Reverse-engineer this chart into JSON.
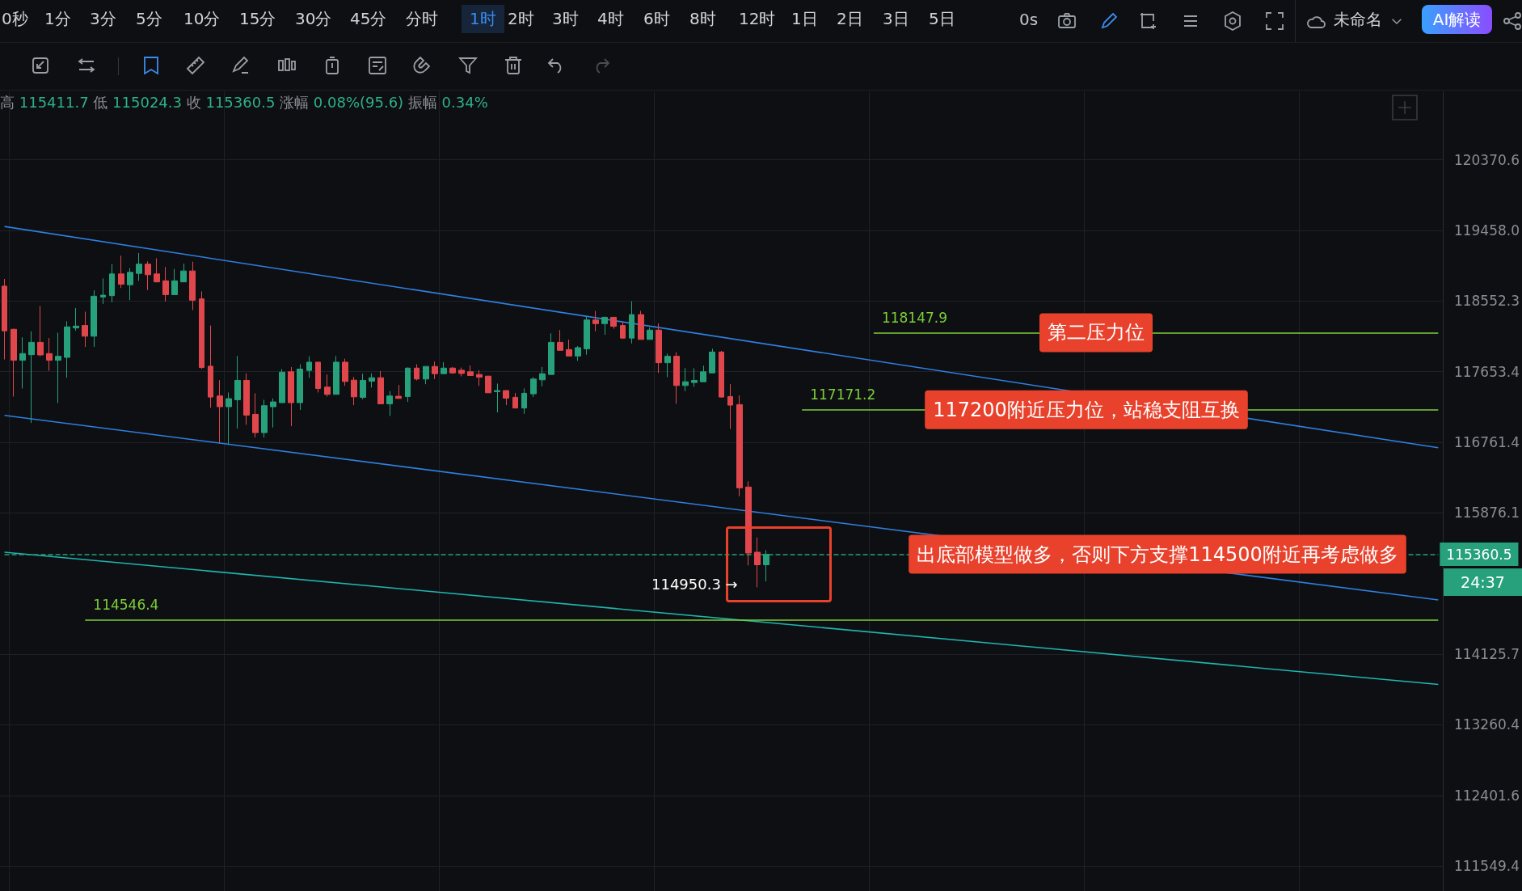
{
  "chart_data": {
    "type": "candlestick",
    "categories": [
      null,
      null,
      null,
      null,
      null,
      null,
      null,
      null,
      null,
      null,
      null,
      null,
      null,
      null,
      null,
      null,
      null,
      null,
      null,
      null,
      null,
      null,
      null,
      null,
      null,
      null,
      null,
      null,
      null,
      null,
      null,
      null,
      null,
      null,
      null,
      null,
      null,
      null,
      null,
      null,
      null,
      null,
      null,
      null,
      null,
      null,
      null,
      null,
      null,
      null,
      null,
      null,
      null,
      null,
      null,
      null,
      null,
      null,
      null,
      null,
      null,
      null,
      null,
      null,
      null,
      null,
      null,
      null,
      null,
      null,
      null,
      null,
      null,
      null,
      null,
      null,
      null,
      null,
      null,
      null,
      null,
      null,
      null,
      null,
      null,
      null,
      null,
      null,
      null,
      null,
      null,
      null,
      null,
      null,
      null,
      null,
      null,
      null,
      null,
      null,
      null,
      null,
      null,
      null,
      null,
      null,
      null,
      null,
      null,
      null,
      null,
      null,
      null,
      null,
      null,
      null,
      null,
      null,
      null,
      null,
      null,
      null,
      null,
      null,
      null,
      null,
      null,
      null,
      null,
      null,
      null,
      null,
      null,
      null,
      null,
      null,
      null,
      null,
      null,
      null,
      null,
      null,
      null,
      null,
      null,
      null,
      null,
      null,
      null,
      null,
      null,
      null,
      null,
      null,
      null,
      null,
      null,
      null,
      null,
      null,
      null
    ],
    "ohlc": [
      [
        118742,
        118834,
        117807,
        118171
      ],
      [
        118191,
        118198,
        117338,
        117797
      ],
      [
        117797,
        118089,
        117440,
        117882
      ],
      [
        117868,
        118164,
        117005,
        118025
      ],
      [
        118025,
        118487,
        117848,
        117865
      ],
      [
        117882,
        118079,
        117664,
        117797
      ],
      [
        117797,
        118147,
        117256,
        117848
      ],
      [
        117834,
        118293,
        117576,
        118222
      ],
      [
        118208,
        118463,
        118174,
        118232
      ],
      [
        118239,
        118416,
        117967,
        118103
      ],
      [
        118103,
        118688,
        117967,
        118613
      ],
      [
        118603,
        118841,
        118514,
        118626
      ],
      [
        118620,
        119024,
        118535,
        118898
      ],
      [
        118898,
        119133,
        118718,
        118766
      ],
      [
        118759,
        118973,
        118562,
        118919
      ],
      [
        118905,
        119167,
        118810,
        119024
      ],
      [
        119024,
        119058,
        118691,
        118888
      ],
      [
        118898,
        119099,
        118796,
        118796
      ],
      [
        118810,
        118987,
        118545,
        118633
      ],
      [
        118633,
        118963,
        118633,
        118810
      ],
      [
        118796,
        119031,
        118796,
        118936
      ],
      [
        118936,
        119055,
        118436,
        118562
      ],
      [
        118579,
        118674,
        117688,
        117705
      ],
      [
        117722,
        118239,
        117195,
        117331
      ],
      [
        117345,
        117545,
        116753,
        117209
      ],
      [
        117209,
        117389,
        116736,
        117311
      ],
      [
        117297,
        117851,
        116933,
        117542
      ],
      [
        117542,
        117630,
        116981,
        117103
      ],
      [
        117113,
        117379,
        116821,
        116882
      ],
      [
        116882,
        117297,
        116821,
        117222
      ],
      [
        117209,
        117314,
        116947,
        117270
      ],
      [
        117260,
        117685,
        117260,
        117647
      ],
      [
        117651,
        117712,
        116964,
        117260
      ],
      [
        117260,
        117746,
        117168,
        117685
      ],
      [
        117668,
        117848,
        117576,
        117773
      ],
      [
        117773,
        117773,
        117389,
        117440
      ],
      [
        117457,
        117617,
        117338,
        117365
      ],
      [
        117365,
        117851,
        117365,
        117773
      ],
      [
        117773,
        117817,
        117474,
        117528
      ],
      [
        117545,
        117586,
        117229,
        117334
      ],
      [
        117328,
        117627,
        117304,
        117542
      ],
      [
        117532,
        117630,
        117450,
        117576
      ],
      [
        117576,
        117661,
        117246,
        117246
      ],
      [
        117246,
        117406,
        117093,
        117345
      ],
      [
        117341,
        117484,
        117314,
        117314
      ],
      [
        117338,
        117705,
        117270,
        117698
      ],
      [
        117698,
        117746,
        117542,
        117559
      ],
      [
        117559,
        117719,
        117494,
        117719
      ],
      [
        117719,
        117780,
        117559,
        117627
      ],
      [
        117627,
        117773,
        117627,
        117698
      ],
      [
        117698,
        117712,
        117627,
        117637
      ],
      [
        117671,
        117705,
        117593,
        117630
      ],
      [
        117651,
        117732,
        117603,
        117603
      ],
      [
        117617,
        117671,
        117474,
        117583
      ],
      [
        117596,
        117596,
        117385,
        117385
      ],
      [
        117399,
        117501,
        117137,
        117413
      ],
      [
        117413,
        117413,
        117229,
        117317
      ],
      [
        117328,
        117382,
        117192,
        117192
      ],
      [
        117192,
        117440,
        117120,
        117379
      ],
      [
        117372,
        117583,
        117331,
        117559
      ],
      [
        117549,
        117712,
        117467,
        117627
      ],
      [
        117617,
        118140,
        117617,
        118025
      ],
      [
        118025,
        118181,
        117923,
        117923
      ],
      [
        117933,
        118059,
        117851,
        117851
      ],
      [
        117851,
        117977,
        117790,
        117957
      ],
      [
        117943,
        118351,
        117868,
        118310
      ],
      [
        118310,
        118426,
        118164,
        118263
      ],
      [
        118263,
        118351,
        118120,
        118344
      ],
      [
        118344,
        118344,
        118198,
        118229
      ],
      [
        118239,
        118283,
        118069,
        118079
      ],
      [
        118079,
        118548,
        118011,
        118378
      ],
      [
        118378,
        118426,
        118062,
        118062
      ],
      [
        118062,
        118215,
        118062,
        118181
      ],
      [
        118181,
        118266,
        117637,
        117766
      ],
      [
        117766,
        117882,
        117583,
        117848
      ],
      [
        117848,
        117899,
        117246,
        117477
      ],
      [
        117477,
        117698,
        117406,
        117525
      ],
      [
        117515,
        117695,
        117460,
        117542
      ],
      [
        117525,
        117729,
        117525,
        117651
      ],
      [
        117637,
        117943,
        117637,
        117902
      ],
      [
        117902,
        117916,
        117324,
        117331
      ],
      [
        117338,
        117494,
        116930,
        117229
      ],
      [
        117236,
        117351,
        116083,
        116189
      ],
      [
        116199,
        116270,
        115223,
        115376
      ],
      [
        115386,
        115570,
        114950.3,
        115230
      ],
      [
        115230,
        115411.7,
        115024.3,
        115360.5
      ],
      null,
      null,
      null,
      null,
      null,
      null,
      null,
      null,
      null,
      null,
      null,
      null,
      null,
      null,
      null,
      null,
      null,
      null,
      null,
      null,
      null,
      null,
      null,
      null,
      null,
      null,
      null,
      null,
      null,
      null,
      null,
      null,
      null,
      null,
      null,
      null,
      null,
      null,
      null,
      null,
      null,
      null,
      null,
      null,
      null,
      null,
      null,
      null,
      null,
      null,
      null,
      null,
      null,
      null,
      null,
      null,
      null,
      null,
      null,
      null,
      null,
      null,
      null,
      null,
      null,
      null,
      null,
      null,
      null,
      null,
      null,
      null,
      null,
      null,
      null
    ],
    "series": [
      {
        "type": "line",
        "color": "#2f7fe0",
        "values": [
          119507,
          null,
          null,
          null,
          null,
          null,
          null,
          null,
          null,
          null,
          null,
          null,
          null,
          null,
          null,
          null,
          null,
          null,
          null,
          null,
          null,
          null,
          null,
          null,
          null,
          null,
          null,
          null,
          null,
          null,
          null,
          null,
          null,
          null,
          null,
          null,
          null,
          null,
          null,
          null,
          null,
          null,
          null,
          null,
          null,
          null,
          null,
          null,
          null,
          null,
          null,
          null,
          null,
          null,
          null,
          null,
          null,
          null,
          null,
          null,
          null,
          null,
          null,
          null,
          null,
          null,
          null,
          null,
          null,
          null,
          null,
          null,
          null,
          null,
          null,
          null,
          null,
          null,
          null,
          null,
          null,
          null,
          null,
          null,
          null,
          null,
          null,
          null,
          null,
          null,
          null,
          null,
          null,
          null,
          null,
          null,
          null,
          null,
          null,
          null,
          null,
          null,
          null,
          null,
          null,
          null,
          null,
          null,
          null,
          null,
          null,
          null,
          null,
          null,
          null,
          null,
          null,
          null,
          null,
          null,
          null,
          null,
          null,
          null,
          null,
          null,
          null,
          null,
          null,
          null,
          null,
          null,
          null,
          null,
          null,
          null,
          null,
          null,
          null,
          null,
          null,
          null,
          null,
          null,
          null,
          null,
          null,
          null,
          null,
          null,
          null,
          null,
          null,
          null,
          null,
          null,
          null,
          null,
          null,
          null,
          116692
        ]
      },
      {
        "type": "line",
        "color": "#2f7fe0",
        "values": [
          117100,
          null,
          null,
          null,
          null,
          null,
          null,
          null,
          null,
          null,
          null,
          null,
          null,
          null,
          null,
          null,
          null,
          null,
          null,
          null,
          null,
          null,
          null,
          null,
          null,
          null,
          null,
          null,
          null,
          null,
          null,
          null,
          null,
          null,
          null,
          null,
          null,
          null,
          null,
          null,
          null,
          null,
          null,
          null,
          null,
          null,
          null,
          null,
          null,
          null,
          null,
          null,
          null,
          null,
          null,
          null,
          null,
          null,
          null,
          null,
          null,
          null,
          null,
          null,
          null,
          null,
          null,
          null,
          null,
          null,
          null,
          null,
          null,
          null,
          null,
          null,
          null,
          null,
          null,
          null,
          null,
          null,
          null,
          null,
          null,
          null,
          null,
          null,
          null,
          null,
          null,
          null,
          null,
          null,
          null,
          null,
          null,
          null,
          null,
          null,
          null,
          null,
          null,
          null,
          null,
          null,
          null,
          null,
          null,
          null,
          null,
          null,
          null,
          null,
          null,
          null,
          null,
          null,
          null,
          null,
          null,
          null,
          null,
          null,
          null,
          null,
          null,
          null,
          null,
          null,
          null,
          null,
          null,
          null,
          null,
          null,
          null,
          null,
          null,
          null,
          null,
          null,
          null,
          null,
          null,
          null,
          null,
          null,
          null,
          null,
          null,
          null,
          null,
          null,
          null,
          null,
          null,
          null,
          null,
          null,
          114795
        ]
      },
      {
        "type": "line",
        "color": "#1fb5b0",
        "values": [
          115386,
          null,
          null,
          null,
          null,
          null,
          null,
          null,
          null,
          null,
          null,
          null,
          null,
          null,
          null,
          null,
          null,
          null,
          null,
          null,
          null,
          null,
          null,
          null,
          null,
          null,
          null,
          null,
          null,
          null,
          null,
          null,
          null,
          null,
          null,
          null,
          null,
          null,
          null,
          null,
          null,
          null,
          null,
          null,
          null,
          null,
          null,
          null,
          null,
          null,
          null,
          null,
          null,
          null,
          null,
          null,
          null,
          null,
          null,
          null,
          null,
          null,
          null,
          null,
          null,
          null,
          null,
          null,
          null,
          null,
          null,
          null,
          null,
          null,
          null,
          null,
          null,
          null,
          null,
          null,
          null,
          null,
          null,
          null,
          null,
          null,
          null,
          null,
          null,
          null,
          null,
          null,
          null,
          null,
          null,
          null,
          null,
          null,
          null,
          null,
          null,
          null,
          null,
          null,
          null,
          null,
          null,
          null,
          null,
          null,
          null,
          null,
          null,
          null,
          null,
          null,
          null,
          null,
          null,
          null,
          null,
          null,
          null,
          null,
          null,
          null,
          null,
          null,
          null,
          null,
          null,
          null,
          null,
          null,
          null,
          null,
          null,
          null,
          null,
          null,
          null,
          null,
          null,
          null,
          null,
          null,
          null,
          null,
          null,
          null,
          null,
          null,
          null,
          null,
          null,
          null,
          null,
          null,
          null,
          null,
          113754
        ]
      }
    ],
    "ylim": [
      111250,
      121260
    ],
    "yticks": [
      120370.6,
      {
        "value": 119458.0,
        "label": "119458.0"
      },
      118552.3,
      117653.4,
      116761.4,
      115876.1,
      114125.7,
      113260.4,
      112401.6,
      111549.4
    ],
    "log": true,
    "grid": true,
    "marker": "none",
    "tick_labels": "y",
    "ref_lines": [
      {
        "axis": "y",
        "value": 118147.9,
        "label": "118147.9",
        "color": "#7ccf3a"
      },
      {
        "axis": "y",
        "value": 117171.2,
        "label": "117171.2",
        "color": "#7ccf3a"
      },
      {
        "axis": "y",
        "value": 114546.4,
        "label": "114546.4",
        "color": "#7ccf3a"
      },
      {
        "axis": "y",
        "value": 115360.5,
        "label": "115360.5",
        "color": "#26a17b",
        "line_style": "dashed"
      }
    ],
    "annotations": [
      "0秒",
      "1分",
      "3分",
      "5分",
      "10分",
      "15分",
      "30分",
      "45分",
      "分时",
      "1时",
      "2时",
      "3时",
      "4时",
      "6时",
      "8时",
      "12时",
      "1日",
      "2日",
      "3日",
      "5日",
      "0s",
      "未命名",
      "AI解读",
      "高 115411.7 低 115024.3 收 115360.5 涨幅 0.08%(95.6) 振幅 0.34%",
      "24:37",
      "114950.3 →",
      {
        "text": "第二压力位",
        "y": 118147.9
      },
      {
        "text": "117200附近压力位，站稳支阻互换",
        "y": 117171.2
      },
      {
        "text": "出底部模型做多，否则下方支撑114500附近再考虑做多",
        "y": 115360.5
      }
    ]
  }
}
